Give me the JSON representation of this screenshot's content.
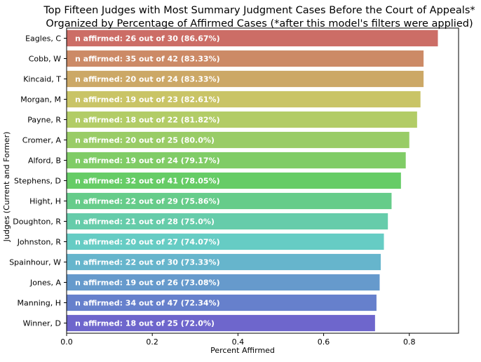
{
  "chart_data": {
    "type": "bar",
    "orientation": "horizontal",
    "title_line1": "Top Fifteen Judges with Most Summary Judgment Cases Before the Court of Appeals*",
    "title_line2": "Organized by Percentage of Affirmed Cases (*after this model's filters were applied)",
    "xlabel": "Percent Affirmed",
    "ylabel": "Judges (Current and Former)",
    "xlim": [
      0,
      0.915
    ],
    "xticks": [
      "0.0",
      "0.2",
      "0.4",
      "0.6",
      "0.8"
    ],
    "xtick_values": [
      0,
      0.2,
      0.4,
      0.6,
      0.8
    ],
    "grid": false,
    "categories": [
      "Eagles, C",
      "Cobb, W",
      "Kincaid, T",
      "Morgan, M",
      "Payne, R",
      "Cromer, A",
      "Alford, B",
      "Stephens, D",
      "Hight, H",
      "Doughton, R",
      "Johnston, R",
      "Spainhour, W",
      "Jones, A",
      "Manning, H",
      "Winner, D"
    ],
    "values": [
      0.8667,
      0.8333,
      0.8333,
      0.8261,
      0.8182,
      0.8,
      0.7917,
      0.7805,
      0.7586,
      0.75,
      0.7407,
      0.7333,
      0.7308,
      0.7234,
      0.72
    ],
    "data_labels": [
      "n affirmed: 26 out of 30 (86.67%)",
      "n affirmed: 35 out of 42 (83.33%)",
      "n affirmed: 20 out of 24 (83.33%)",
      "n affirmed: 19 out of 23 (82.61%)",
      "n affirmed: 18 out of 22 (81.82%)",
      "n affirmed: 20 out of 25 (80.0%)",
      "n affirmed: 19 out of 24 (79.17%)",
      "n affirmed: 32 out of 41 (78.05%)",
      "n affirmed: 22 out of 29 (75.86%)",
      "n affirmed: 21 out of 28 (75.0%)",
      "n affirmed: 20 out of 27 (74.07%)",
      "n affirmed: 22 out of 30 (73.33%)",
      "n affirmed: 19 out of 26 (73.08%)",
      "n affirmed: 34 out of 47 (72.34%)",
      "n affirmed: 18 out of 25 (72.0%)"
    ],
    "colors": [
      "#cc6d66",
      "#cc8a66",
      "#cca866",
      "#c9c466",
      "#b2cc66",
      "#99cc66",
      "#80cc66",
      "#66cc66",
      "#66cc8a",
      "#66ccaa",
      "#66ccc4",
      "#66b5cc",
      "#669acc",
      "#6680cc",
      "#6e66cc"
    ]
  }
}
